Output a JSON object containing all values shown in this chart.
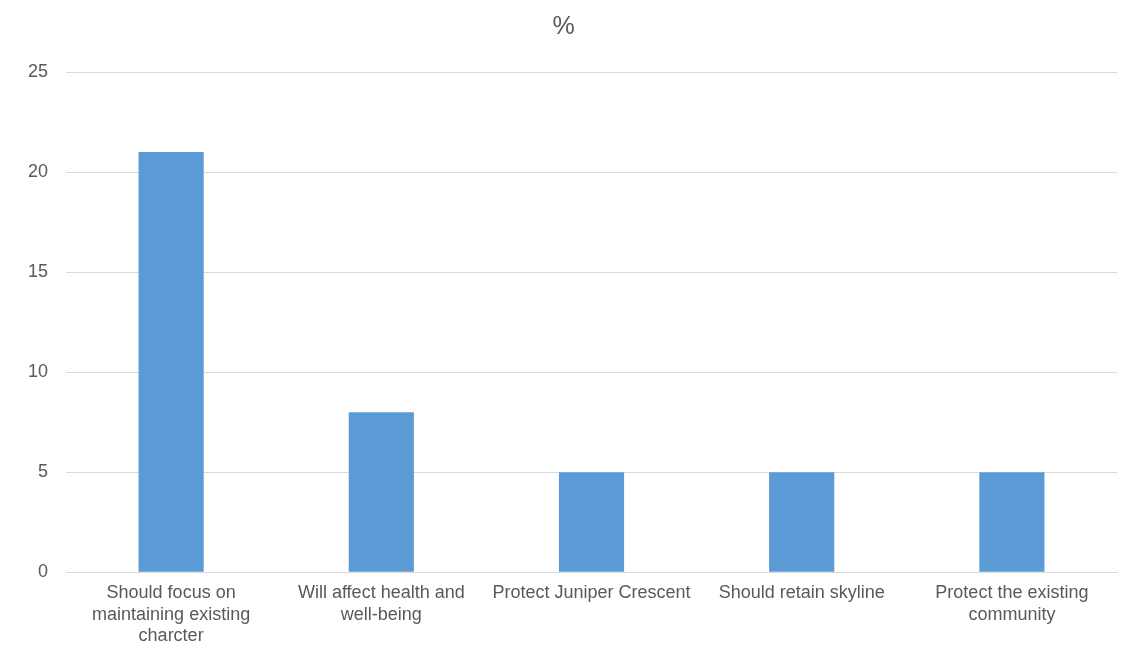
{
  "chart_data": {
    "type": "bar",
    "title": "%",
    "categories": [
      "Should focus on maintaining existing charcter",
      "Will affect health and well-being",
      "Protect Juniper Crescent",
      "Should retain skyline",
      "Protect the existing community"
    ],
    "values": [
      21,
      8,
      5,
      5,
      5
    ],
    "color": "#5b9bd5",
    "ylim": [
      0,
      25
    ],
    "yticks": [
      0,
      5,
      10,
      15,
      20,
      25
    ],
    "grid": "y",
    "legend": false
  }
}
